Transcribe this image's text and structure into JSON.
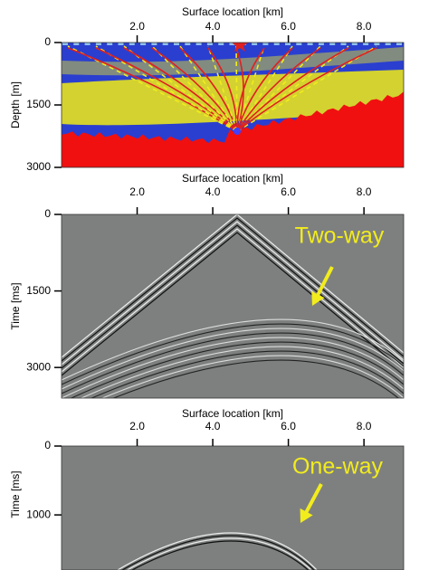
{
  "chart_data": [
    {
      "type": "model",
      "xlabel": "Surface location [km]",
      "ylabel": "Depth [m]",
      "xlim": [
        0,
        9.05
      ],
      "ylim": [
        0,
        3000
      ],
      "y_inverted": true,
      "xticks": [
        {
          "value": 2,
          "label": "2.0"
        },
        {
          "value": 4,
          "label": "4.0"
        },
        {
          "value": 6,
          "label": "6.0"
        },
        {
          "value": 8,
          "label": "8.0"
        }
      ],
      "yticks": [
        0,
        1500,
        3000
      ]
    },
    {
      "type": "gather",
      "xlabel": "Surface location [km]",
      "ylabel": "Time [ms]",
      "xlim": [
        0,
        9.05
      ],
      "ylim": [
        0,
        3600
      ],
      "y_inverted": true,
      "xticks": [
        {
          "value": 2,
          "label": "2.0"
        },
        {
          "value": 4,
          "label": "4.0"
        },
        {
          "value": 6,
          "label": "6.0"
        },
        {
          "value": 8,
          "label": "8.0"
        }
      ],
      "yticks": [
        0,
        1500,
        3000
      ],
      "annotation": "Two-way"
    },
    {
      "type": "gather",
      "xlabel": "Surface location [km]",
      "ylabel": "Time [ms]",
      "xlim": [
        0,
        9.05
      ],
      "ylim": [
        0,
        1800
      ],
      "y_inverted": true,
      "xticks": [
        {
          "value": 2,
          "label": "2.0"
        },
        {
          "value": 4,
          "label": "4.0"
        },
        {
          "value": 6,
          "label": "6.0"
        },
        {
          "value": 8,
          "label": "8.0"
        }
      ],
      "yticks": [
        0,
        1000
      ],
      "annotation": "One-way"
    }
  ]
}
